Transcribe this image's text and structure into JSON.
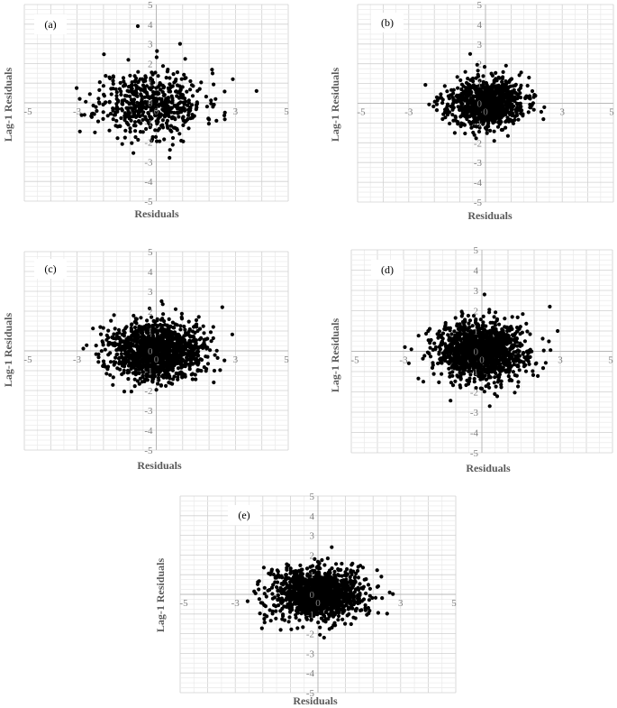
{
  "chart_data": [
    {
      "type": "scatter",
      "panel_label": "(a)",
      "xlabel": "Residuals",
      "ylabel": "Lag-1 Residuals",
      "xlim": [
        -5,
        5
      ],
      "ylim": [
        -5,
        5
      ],
      "x_ticks": [
        "-5",
        "-3",
        "0",
        "3",
        "5"
      ],
      "y_ticks": [
        "5",
        "4",
        "3",
        "2",
        "1",
        "0",
        "-1",
        "-2",
        "-3",
        "-4",
        "-5"
      ],
      "grid": true,
      "legend": "none",
      "point_color": "#000000",
      "cloud": {
        "n": 560,
        "mean_x": -0.2,
        "mean_y": 0.0,
        "sd_x": 1.0,
        "sd_y": 0.85,
        "seed": 11
      },
      "outliers": [
        {
          "x": -0.7,
          "y": 3.9
        },
        {
          "x": 3.8,
          "y": 0.6
        },
        {
          "x": -2.9,
          "y": 0.2
        },
        {
          "x": 0.5,
          "y": -2.8
        },
        {
          "x": 2.9,
          "y": 1.2
        },
        {
          "x": 2.6,
          "y": -0.5
        },
        {
          "x": 0.9,
          "y": 3.0
        }
      ]
    },
    {
      "type": "scatter",
      "panel_label": "(b)",
      "xlabel": "Residuals",
      "ylabel": "Lag-1 Residuals",
      "xlim": [
        -5,
        5
      ],
      "ylim": [
        -5,
        5
      ],
      "x_ticks": [
        "-5",
        "-3",
        "0",
        "3",
        "5"
      ],
      "y_ticks": [
        "5",
        "4",
        "3",
        "2",
        "1",
        "0",
        "-1",
        "-2",
        "-3",
        "-4",
        "-5"
      ],
      "grid": true,
      "legend": "none",
      "point_color": "#000000",
      "cloud": {
        "n": 900,
        "mean_x": 0.0,
        "mean_y": 0.0,
        "sd_x": 0.75,
        "sd_y": 0.6,
        "seed": 23
      },
      "outliers": [
        {
          "x": -0.6,
          "y": 2.5
        },
        {
          "x": 2.3,
          "y": -0.2
        },
        {
          "x": -1.2,
          "y": -1.5
        },
        {
          "x": 1.7,
          "y": 1.3
        },
        {
          "x": -1.9,
          "y": 0.3
        }
      ]
    },
    {
      "type": "scatter",
      "panel_label": "(c)",
      "xlabel": "Residuals",
      "ylabel": "Lag-1 Residuals",
      "xlim": [
        -5,
        5
      ],
      "ylim": [
        -5,
        5
      ],
      "x_ticks": [
        "-5",
        "-3",
        "0",
        "3",
        "5"
      ],
      "y_ticks": [
        "5",
        "4",
        "3",
        "2",
        "1",
        "0",
        "-1",
        "-2",
        "-3",
        "-4",
        "-5"
      ],
      "grid": true,
      "legend": "none",
      "point_color": "#000000",
      "cloud": {
        "n": 1400,
        "mean_x": 0.0,
        "mean_y": 0.0,
        "sd_x": 0.85,
        "sd_y": 0.7,
        "seed": 37
      },
      "outliers": [
        {
          "x": 2.5,
          "y": 2.2
        },
        {
          "x": -1.6,
          "y": 1.8
        },
        {
          "x": 2.2,
          "y": -1.0
        },
        {
          "x": 0.2,
          "y": 2.5
        }
      ]
    },
    {
      "type": "scatter",
      "panel_label": "(d)",
      "xlabel": "Residuals",
      "ylabel": "Lag-1 Residuals",
      "xlim": [
        -5,
        5
      ],
      "ylim": [
        -5,
        5
      ],
      "x_ticks": [
        "-5",
        "-3",
        "0",
        "3",
        "5"
      ],
      "y_ticks": [
        "5",
        "4",
        "3",
        "2",
        "1",
        "0",
        "-1",
        "-2",
        "-3",
        "-4",
        "-5"
      ],
      "grid": true,
      "legend": "none",
      "point_color": "#000000",
      "cloud": {
        "n": 1400,
        "mean_x": 0.0,
        "mean_y": 0.0,
        "sd_x": 0.85,
        "sd_y": 0.7,
        "seed": 53
      },
      "outliers": [
        {
          "x": -2.7,
          "y": 0.1
        },
        {
          "x": 2.6,
          "y": 2.2
        },
        {
          "x": 0.3,
          "y": -2.7
        },
        {
          "x": 2.9,
          "y": 1.0
        },
        {
          "x": 0.1,
          "y": 2.8
        }
      ]
    },
    {
      "type": "scatter",
      "panel_label": "(e)",
      "xlabel": "Residuals",
      "ylabel": "Lag-1 Residuals",
      "xlim": [
        -5,
        5
      ],
      "ylim": [
        -5,
        5
      ],
      "x_ticks": [
        "-5",
        "-3",
        "0",
        "3",
        "5"
      ],
      "y_ticks": [
        "5",
        "4",
        "3",
        "2",
        "1",
        "0",
        "-1",
        "-2",
        "-3",
        "-4",
        "-5"
      ],
      "grid": true,
      "legend": "none",
      "point_color": "#000000",
      "cloud": {
        "n": 1400,
        "mean_x": 0.0,
        "mean_y": 0.0,
        "sd_x": 0.8,
        "sd_y": 0.65,
        "seed": 71
      },
      "outliers": [
        {
          "x": 2.6,
          "y": 0.1
        },
        {
          "x": 0.5,
          "y": 2.4
        },
        {
          "x": -1.9,
          "y": -0.6
        },
        {
          "x": 2.3,
          "y": 0.9
        }
      ]
    }
  ]
}
